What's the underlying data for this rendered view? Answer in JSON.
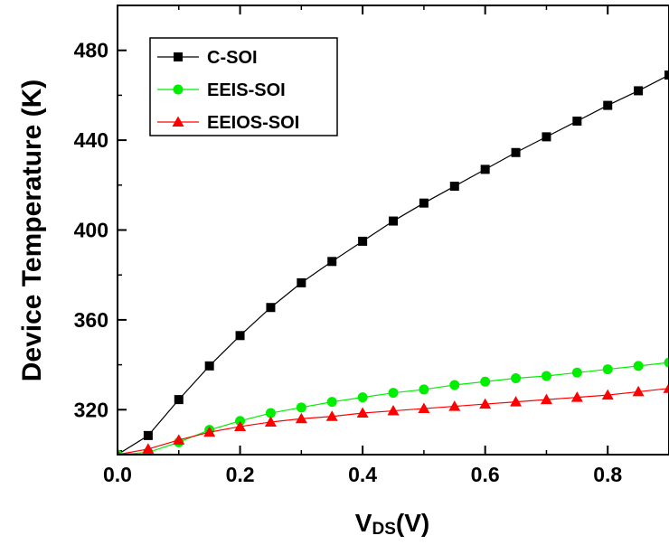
{
  "chart_data": {
    "type": "line",
    "xlabel": {
      "main": "V",
      "sub": "DS",
      "rest": "(V)"
    },
    "ylabel": "Device Temperature (K)",
    "xlim": [
      0,
      0.9
    ],
    "ylim": [
      300,
      500
    ],
    "xticks": [
      0.0,
      0.2,
      0.4,
      0.6,
      0.8
    ],
    "xtick_labels": [
      "0.0",
      "0.2",
      "0.4",
      "0.6",
      "0.8"
    ],
    "yticks": [
      320,
      360,
      400,
      440,
      480
    ],
    "ytick_labels": [
      "320",
      "360",
      "400",
      "440",
      "480"
    ],
    "legend_position": "top-left",
    "x": [
      0.0,
      0.05,
      0.1,
      0.15,
      0.2,
      0.25,
      0.3,
      0.35,
      0.4,
      0.45,
      0.5,
      0.55,
      0.6,
      0.65,
      0.7,
      0.75,
      0.8,
      0.85,
      0.9
    ],
    "series": [
      {
        "name": "C-SOI",
        "color": "#000000",
        "marker": "square",
        "values": [
          300,
          308.5,
          324.5,
          339.5,
          353,
          365.5,
          376.5,
          386,
          395,
          404,
          412,
          419.5,
          427,
          434.5,
          441.5,
          448.5,
          455.5,
          462,
          469
        ]
      },
      {
        "name": "EEIS-SOI",
        "color": "#00ee00",
        "marker": "circle",
        "values": [
          300,
          301,
          305.5,
          311,
          315,
          318.5,
          321,
          323.5,
          325.5,
          327.5,
          329,
          331,
          332.5,
          334,
          335,
          336.5,
          338,
          339.5,
          341
        ]
      },
      {
        "name": "EEIOS-SOI",
        "color": "#ff0000",
        "marker": "triangle",
        "values": [
          300,
          302.5,
          306.5,
          310,
          312.5,
          314.5,
          316,
          317,
          318.5,
          319.5,
          320.5,
          321.5,
          322.5,
          323.5,
          324.5,
          325.5,
          326.5,
          328,
          329.5
        ]
      }
    ]
  }
}
